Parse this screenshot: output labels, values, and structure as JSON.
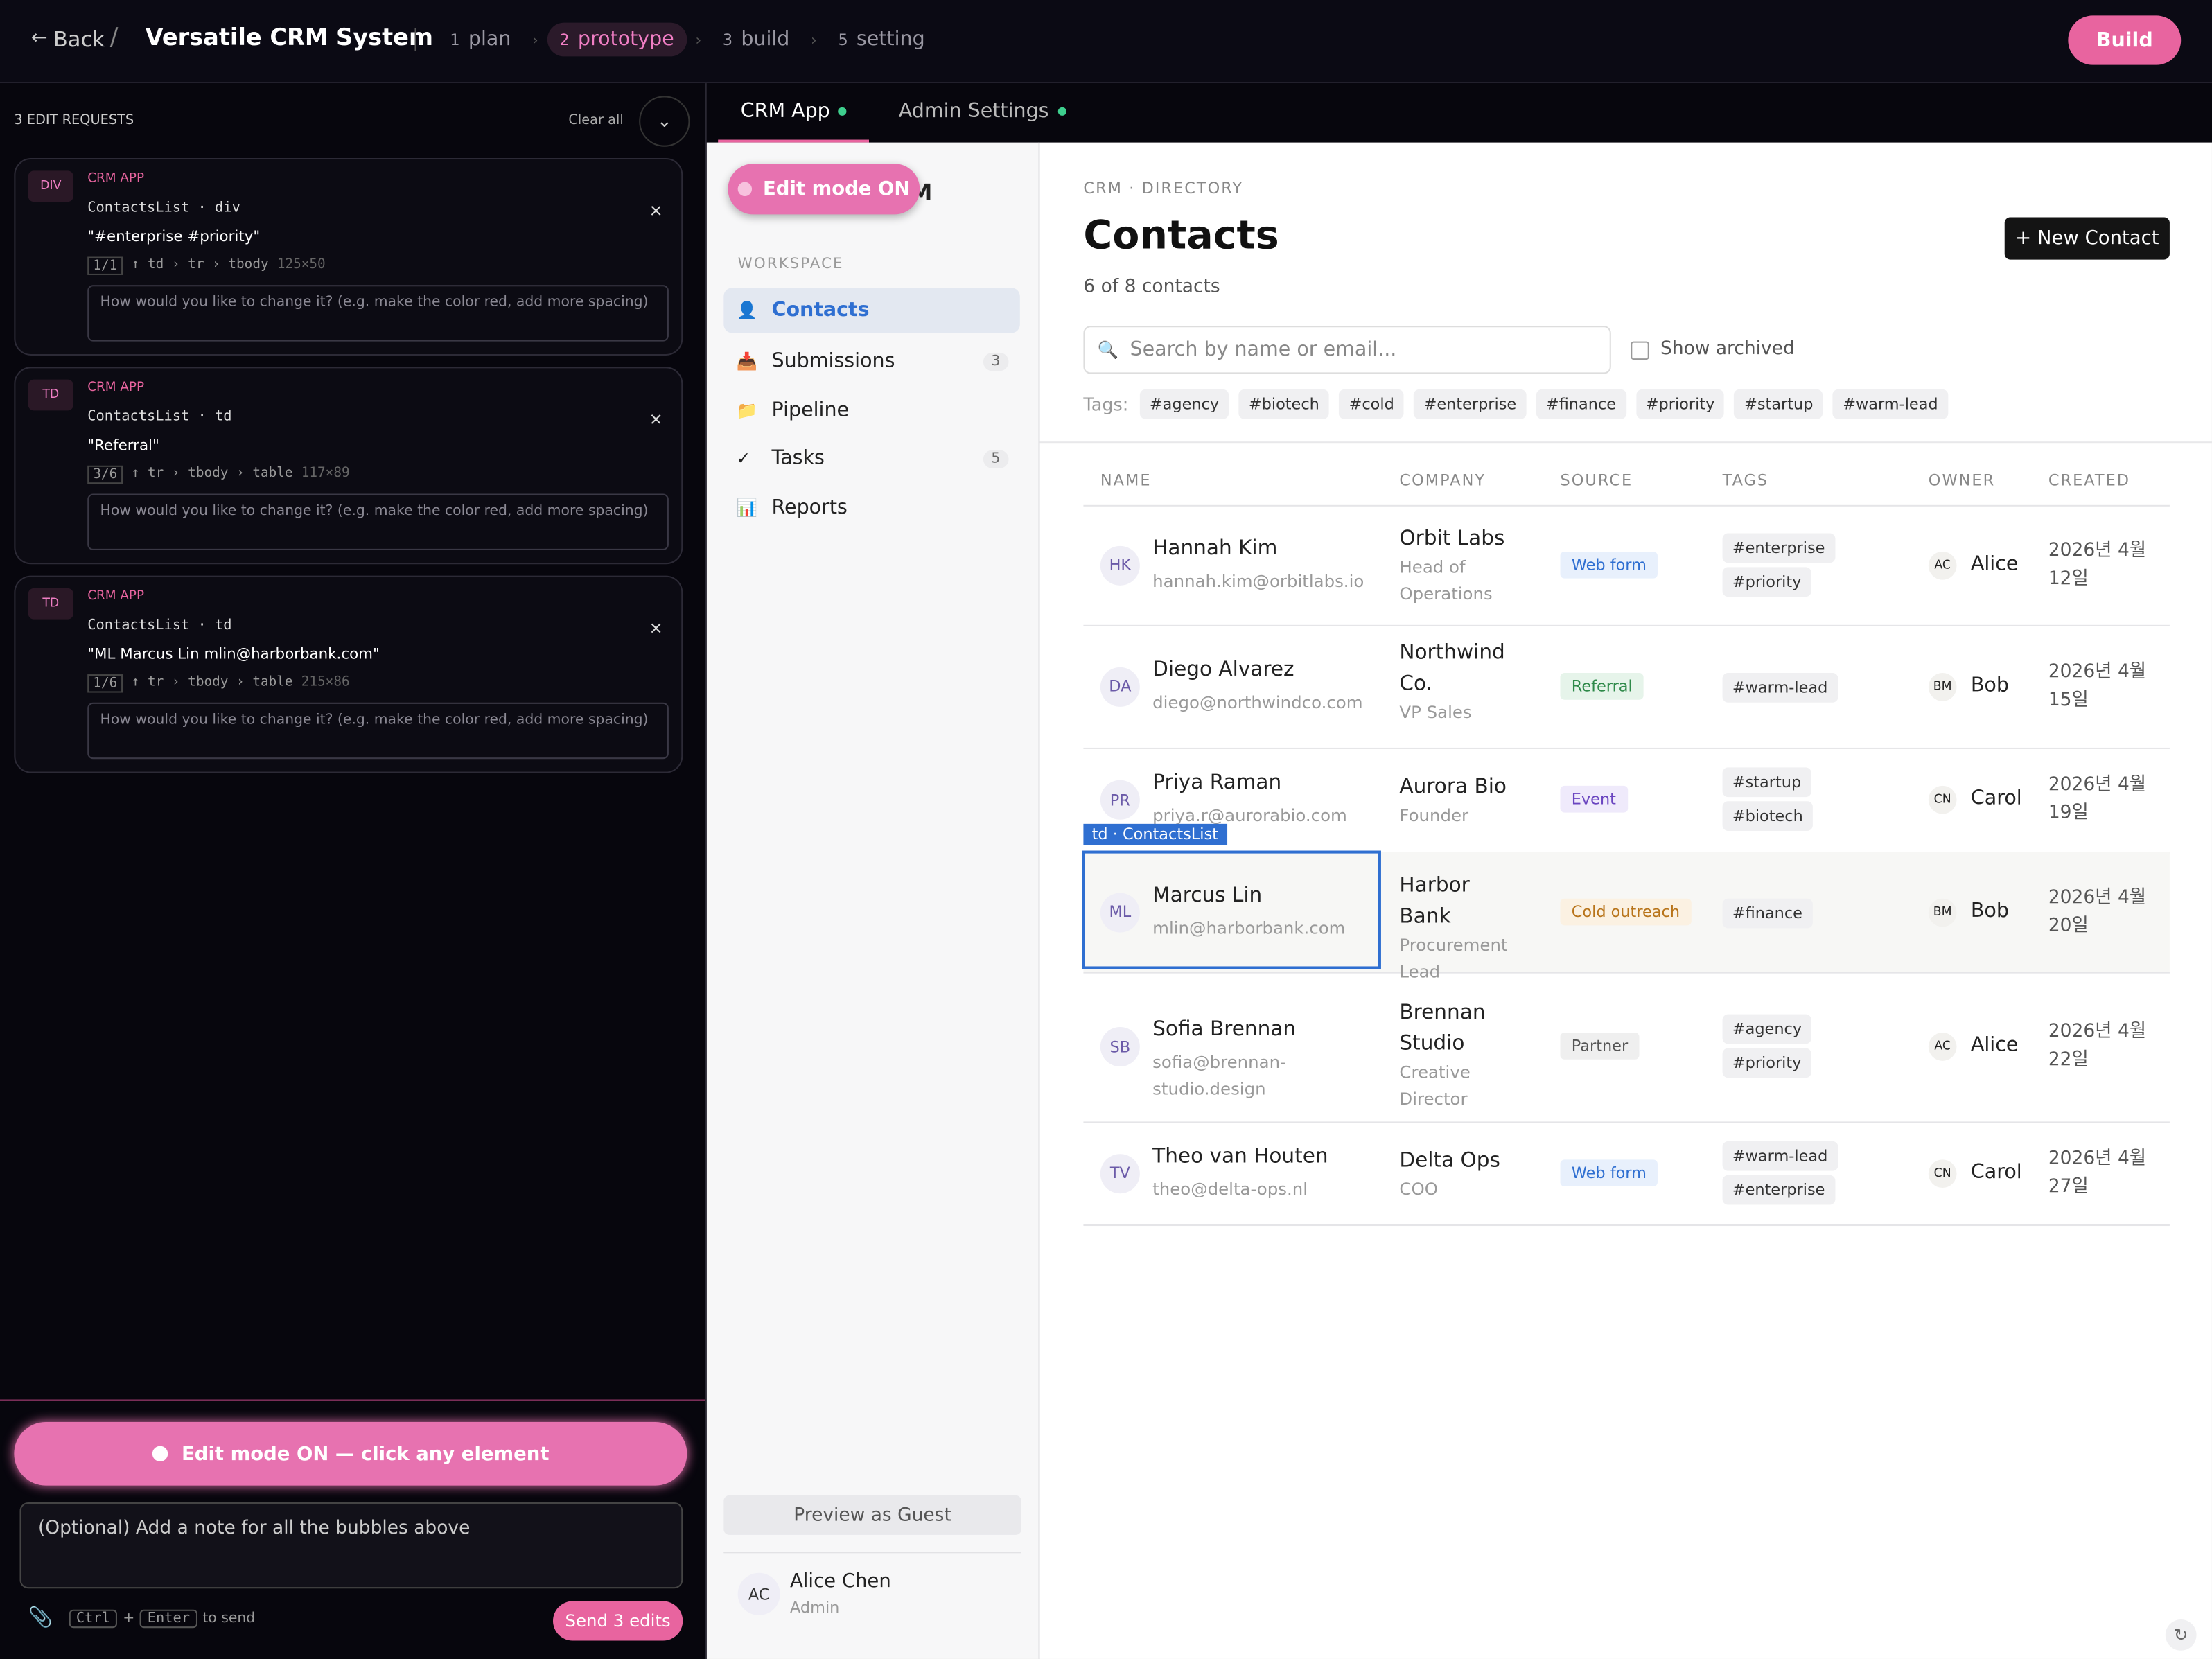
{
  "header": {
    "back": "Back",
    "title": "Versatile CRM System",
    "steps": [
      {
        "num": 1,
        "label": "plan"
      },
      {
        "num": 2,
        "label": "prototype"
      },
      {
        "num": 3,
        "label": "build"
      },
      {
        "num": 5,
        "label": "setting"
      }
    ],
    "build": "Build"
  },
  "left_panel": {
    "count_label": "3 EDIT REQUESTS",
    "clear": "Clear all",
    "requests": [
      {
        "tag": "DIV",
        "app": "CRM APP",
        "component": "ContactsList · div",
        "text": "\"#enterprise #priority\"",
        "index": "1/1",
        "path": "↑ td › tr › tbody",
        "size": "125×50",
        "placeholder": "How would you like to change it? (e.g. make the color red, add more spacing)"
      },
      {
        "tag": "TD",
        "app": "CRM APP",
        "component": "ContactsList · td",
        "text": "\"Referral\"",
        "index": "3/6",
        "path": "↑ tr › tbody › table",
        "size": "117×89",
        "placeholder": "How would you like to change it? (e.g. make the color red, add more spacing)"
      },
      {
        "tag": "TD",
        "app": "CRM APP",
        "component": "ContactsList · td",
        "text": "\"ML Marcus Lin mlin@harborbank.com\"",
        "index": "1/6",
        "path": "↑ tr › tbody › table",
        "size": "215×86",
        "placeholder": "How would you like to change it? (e.g. make the color red, add more spacing)"
      }
    ],
    "edit_button": "Edit mode ON — click any element",
    "note_placeholder": "(Optional) Add a note for all the bubbles above",
    "keys": [
      "Ctrl",
      "Enter"
    ],
    "plus": "+",
    "send_hint": "to send",
    "send": "Send 3 edits"
  },
  "tabs": [
    "CRM App",
    "Admin Settings"
  ],
  "sidebar": {
    "edit_badge": "Edit mode ON",
    "brand_fragment": "M",
    "section": "WORKSPACE",
    "nav": [
      {
        "icon": "👤",
        "label": "Contacts"
      },
      {
        "icon": "📥",
        "label": "Submissions",
        "count": 3
      },
      {
        "icon": "📁",
        "label": "Pipeline"
      },
      {
        "icon": "✓",
        "label": "Tasks",
        "count": 5
      },
      {
        "icon": "📊",
        "label": "Reports"
      }
    ],
    "preview": "Preview as Guest",
    "user": {
      "initials": "AC",
      "name": "Alice Chen",
      "role": "Admin"
    }
  },
  "main": {
    "breadcrumb": "CRM · DIRECTORY",
    "title": "Contacts",
    "new_button": "+ New Contact",
    "count": "6 of 8 contacts",
    "search_placeholder": "Search by name or email...",
    "archived": "Show archived",
    "tags_label": "Tags:",
    "tags": [
      "#agency",
      "#biotech",
      "#cold",
      "#enterprise",
      "#finance",
      "#priority",
      "#startup",
      "#warm-lead"
    ],
    "columns": [
      "NAME",
      "COMPANY",
      "SOURCE",
      "TAGS",
      "OWNER",
      "CREATED"
    ],
    "selection_label": "td · ContactsList",
    "rows": [
      {
        "initials": "HK",
        "name": "Hannah Kim",
        "email": "hannah.kim@orbitlabs.io",
        "company": "Orbit Labs",
        "role": "Head of Operations",
        "source": "Web form",
        "source_color": "#2f6fd1",
        "source_bg": "#e8f0fc",
        "tags": [
          "#enterprise",
          "#priority"
        ],
        "owner_initials": "AC",
        "owner": "Alice",
        "created": "2026년 4월 12일"
      },
      {
        "initials": "DA",
        "name": "Diego Alvarez",
        "email": "diego@northwindco.com",
        "company": "Northwind Co.",
        "role": "VP Sales",
        "source": "Referral",
        "source_color": "#2f8a4a",
        "source_bg": "#e6f4ea",
        "tags": [
          "#warm-lead"
        ],
        "owner_initials": "BM",
        "owner": "Bob",
        "created": "2026년 4월 15일"
      },
      {
        "initials": "PR",
        "name": "Priya Raman",
        "email": "priya.r@aurorabio.com",
        "company": "Aurora Bio",
        "role": "Founder",
        "source": "Event",
        "source_color": "#6a45c0",
        "source_bg": "#efeafb",
        "tags": [
          "#startup",
          "#biotech"
        ],
        "owner_initials": "CN",
        "owner": "Carol",
        "created": "2026년 4월 19일"
      },
      {
        "initials": "ML",
        "name": "Marcus Lin",
        "email": "mlin@harborbank.com",
        "company": "Harbor Bank",
        "role": "Procurement Lead",
        "source": "Cold outreach",
        "source_color": "#b8741a",
        "source_bg": "#fbf1e2",
        "tags": [
          "#finance"
        ],
        "owner_initials": "BM",
        "owner": "Bob",
        "created": "2026년 4월 20일"
      },
      {
        "initials": "SB",
        "name": "Sofia Brennan",
        "email": "sofia@brennan-studio.design",
        "company": "Brennan Studio",
        "role": "Creative Director",
        "source": "Partner",
        "source_color": "#555555",
        "source_bg": "#efefef",
        "tags": [
          "#agency",
          "#priority"
        ],
        "owner_initials": "AC",
        "owner": "Alice",
        "created": "2026년 4월 22일"
      },
      {
        "initials": "TV",
        "name": "Theo van Houten",
        "email": "theo@delta-ops.nl",
        "company": "Delta Ops",
        "role": "COO",
        "source": "Web form",
        "source_color": "#2f6fd1",
        "source_bg": "#e8f0fc",
        "tags": [
          "#warm-lead",
          "#enterprise"
        ],
        "owner_initials": "CN",
        "owner": "Carol",
        "created": "2026년 4월 27일"
      }
    ]
  }
}
